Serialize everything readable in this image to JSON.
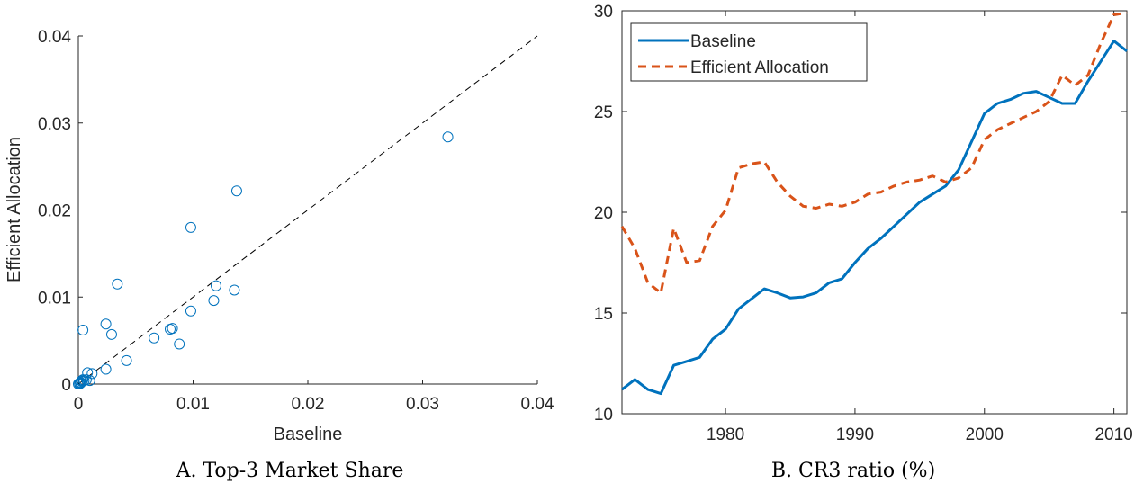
{
  "chart_data": [
    {
      "type": "scatter",
      "title": "",
      "xlabel": "Baseline",
      "ylabel": "Efficient Allocation",
      "caption": "A. Top-3 Market Share",
      "xlim": [
        0,
        0.04
      ],
      "ylim": [
        0,
        0.04
      ],
      "xticks": [
        "0",
        "0.01",
        "0.02",
        "0.03",
        "0.04"
      ],
      "yticks": [
        "0",
        "0.01",
        "0.02",
        "0.03",
        "0.04"
      ],
      "reference_line": {
        "style": "dashed",
        "color": "#000000",
        "from": [
          0,
          0
        ],
        "to": [
          0.04,
          0.04
        ]
      },
      "marker_color": "#0072BD",
      "grid": false,
      "series": [
        {
          "x": [
            0.0322,
            0.0138,
            0.0098,
            0.0034,
            0.0004,
            0.0024,
            0.0029,
            0.0042,
            0.0024,
            0.0004,
            0.001,
            0.0012,
            0.0008,
            0.0066,
            0.008,
            0.0082,
            0.0088,
            0.0098,
            0.0118,
            0.012,
            0.0136,
            0.0,
            0.0001,
            0.0002,
            0.0003,
            0.0005,
            0.0007,
            0.0001,
            0.0002,
            0.0003
          ],
          "y": [
            0.0284,
            0.0222,
            0.018,
            0.0115,
            0.0062,
            0.0069,
            0.0057,
            0.0027,
            0.0017,
            0.0005,
            0.0004,
            0.0012,
            0.0013,
            0.0053,
            0.0063,
            0.0064,
            0.0046,
            0.0084,
            0.0096,
            0.0113,
            0.0108,
            0.0,
            0.0001,
            0.0002,
            0.0003,
            0.0004,
            0.0005,
            0.0,
            0.0001,
            0.0004
          ]
        }
      ]
    },
    {
      "type": "line",
      "title": "",
      "xlabel": "",
      "ylabel": "",
      "caption": "B. CR3 ratio (%)",
      "xlim": [
        1972,
        2011
      ],
      "ylim": [
        10,
        30
      ],
      "xticks": [
        1980,
        1990,
        2000,
        2010
      ],
      "yticks": [
        10,
        15,
        20,
        25,
        30
      ],
      "grid": false,
      "legend_position": "top-left",
      "x": [
        1972,
        1973,
        1974,
        1975,
        1976,
        1977,
        1978,
        1979,
        1980,
        1981,
        1982,
        1983,
        1984,
        1985,
        1986,
        1987,
        1988,
        1989,
        1990,
        1991,
        1992,
        1993,
        1994,
        1995,
        1996,
        1997,
        1998,
        1999,
        2000,
        2001,
        2002,
        2003,
        2004,
        2005,
        2006,
        2007,
        2008,
        2009,
        2010,
        2011
      ],
      "series": [
        {
          "name": "Baseline",
          "color": "#0072BD",
          "style": "solid",
          "values": [
            11.2,
            11.7,
            11.2,
            11.0,
            12.4,
            12.6,
            12.8,
            13.7,
            14.2,
            15.2,
            15.7,
            16.2,
            16.0,
            15.75,
            15.8,
            16.0,
            16.5,
            16.7,
            17.5,
            18.2,
            18.7,
            19.3,
            19.9,
            20.5,
            20.9,
            21.3,
            22.1,
            23.5,
            24.9,
            25.4,
            25.6,
            25.9,
            26.0,
            25.7,
            25.4,
            25.4,
            26.5,
            27.5,
            28.5,
            28.0
          ]
        },
        {
          "name": "Efficient Allocation",
          "color": "#D95319",
          "style": "dashed",
          "values": [
            19.3,
            18.2,
            16.5,
            16.0,
            19.2,
            17.5,
            17.6,
            19.3,
            20.1,
            22.2,
            22.4,
            22.5,
            21.5,
            20.8,
            20.3,
            20.2,
            20.4,
            20.3,
            20.5,
            20.9,
            21.0,
            21.3,
            21.5,
            21.6,
            21.8,
            21.5,
            21.7,
            22.2,
            23.6,
            24.1,
            24.4,
            24.7,
            25.0,
            25.5,
            26.8,
            26.3,
            26.8,
            28.4,
            29.8,
            29.9
          ]
        }
      ]
    }
  ]
}
